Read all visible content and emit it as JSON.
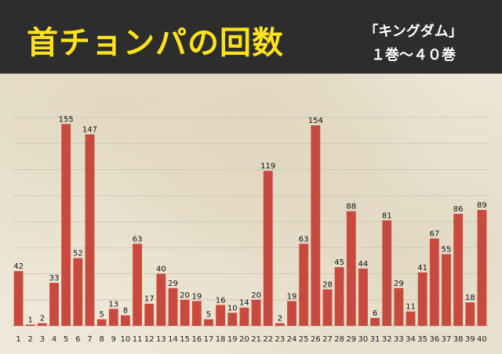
{
  "header": {
    "title": "首チョンパの回数",
    "subtitle_line1": "「キングダム」",
    "subtitle_line2": "１巻〜４０巻"
  },
  "colors": {
    "bar": "#c84a3e",
    "header_bg": "#2d2d2d",
    "title": "#fde21f",
    "grid": "#c7c0b3"
  },
  "chart_data": {
    "type": "bar",
    "title": "首チョンパの回数",
    "xlabel": "",
    "ylabel": "",
    "categories": [
      "1",
      "2",
      "3",
      "4",
      "5",
      "6",
      "7",
      "8",
      "9",
      "10",
      "11",
      "12",
      "13",
      "14",
      "15",
      "16",
      "17",
      "18",
      "19",
      "20",
      "21",
      "22",
      "23",
      "24",
      "25",
      "26",
      "27",
      "28",
      "29",
      "30",
      "31",
      "32",
      "33",
      "34",
      "35",
      "36",
      "37",
      "38",
      "39",
      "40"
    ],
    "values": [
      42,
      1,
      2,
      33,
      155,
      52,
      147,
      5,
      13,
      8,
      63,
      17,
      40,
      29,
      20,
      19,
      5,
      16,
      10,
      14,
      20,
      119,
      2,
      19,
      63,
      154,
      28,
      45,
      88,
      44,
      6,
      81,
      29,
      11,
      41,
      67,
      55,
      86,
      18,
      89
    ],
    "ylim": [
      0,
      160
    ],
    "grid": true,
    "legend": "none"
  }
}
